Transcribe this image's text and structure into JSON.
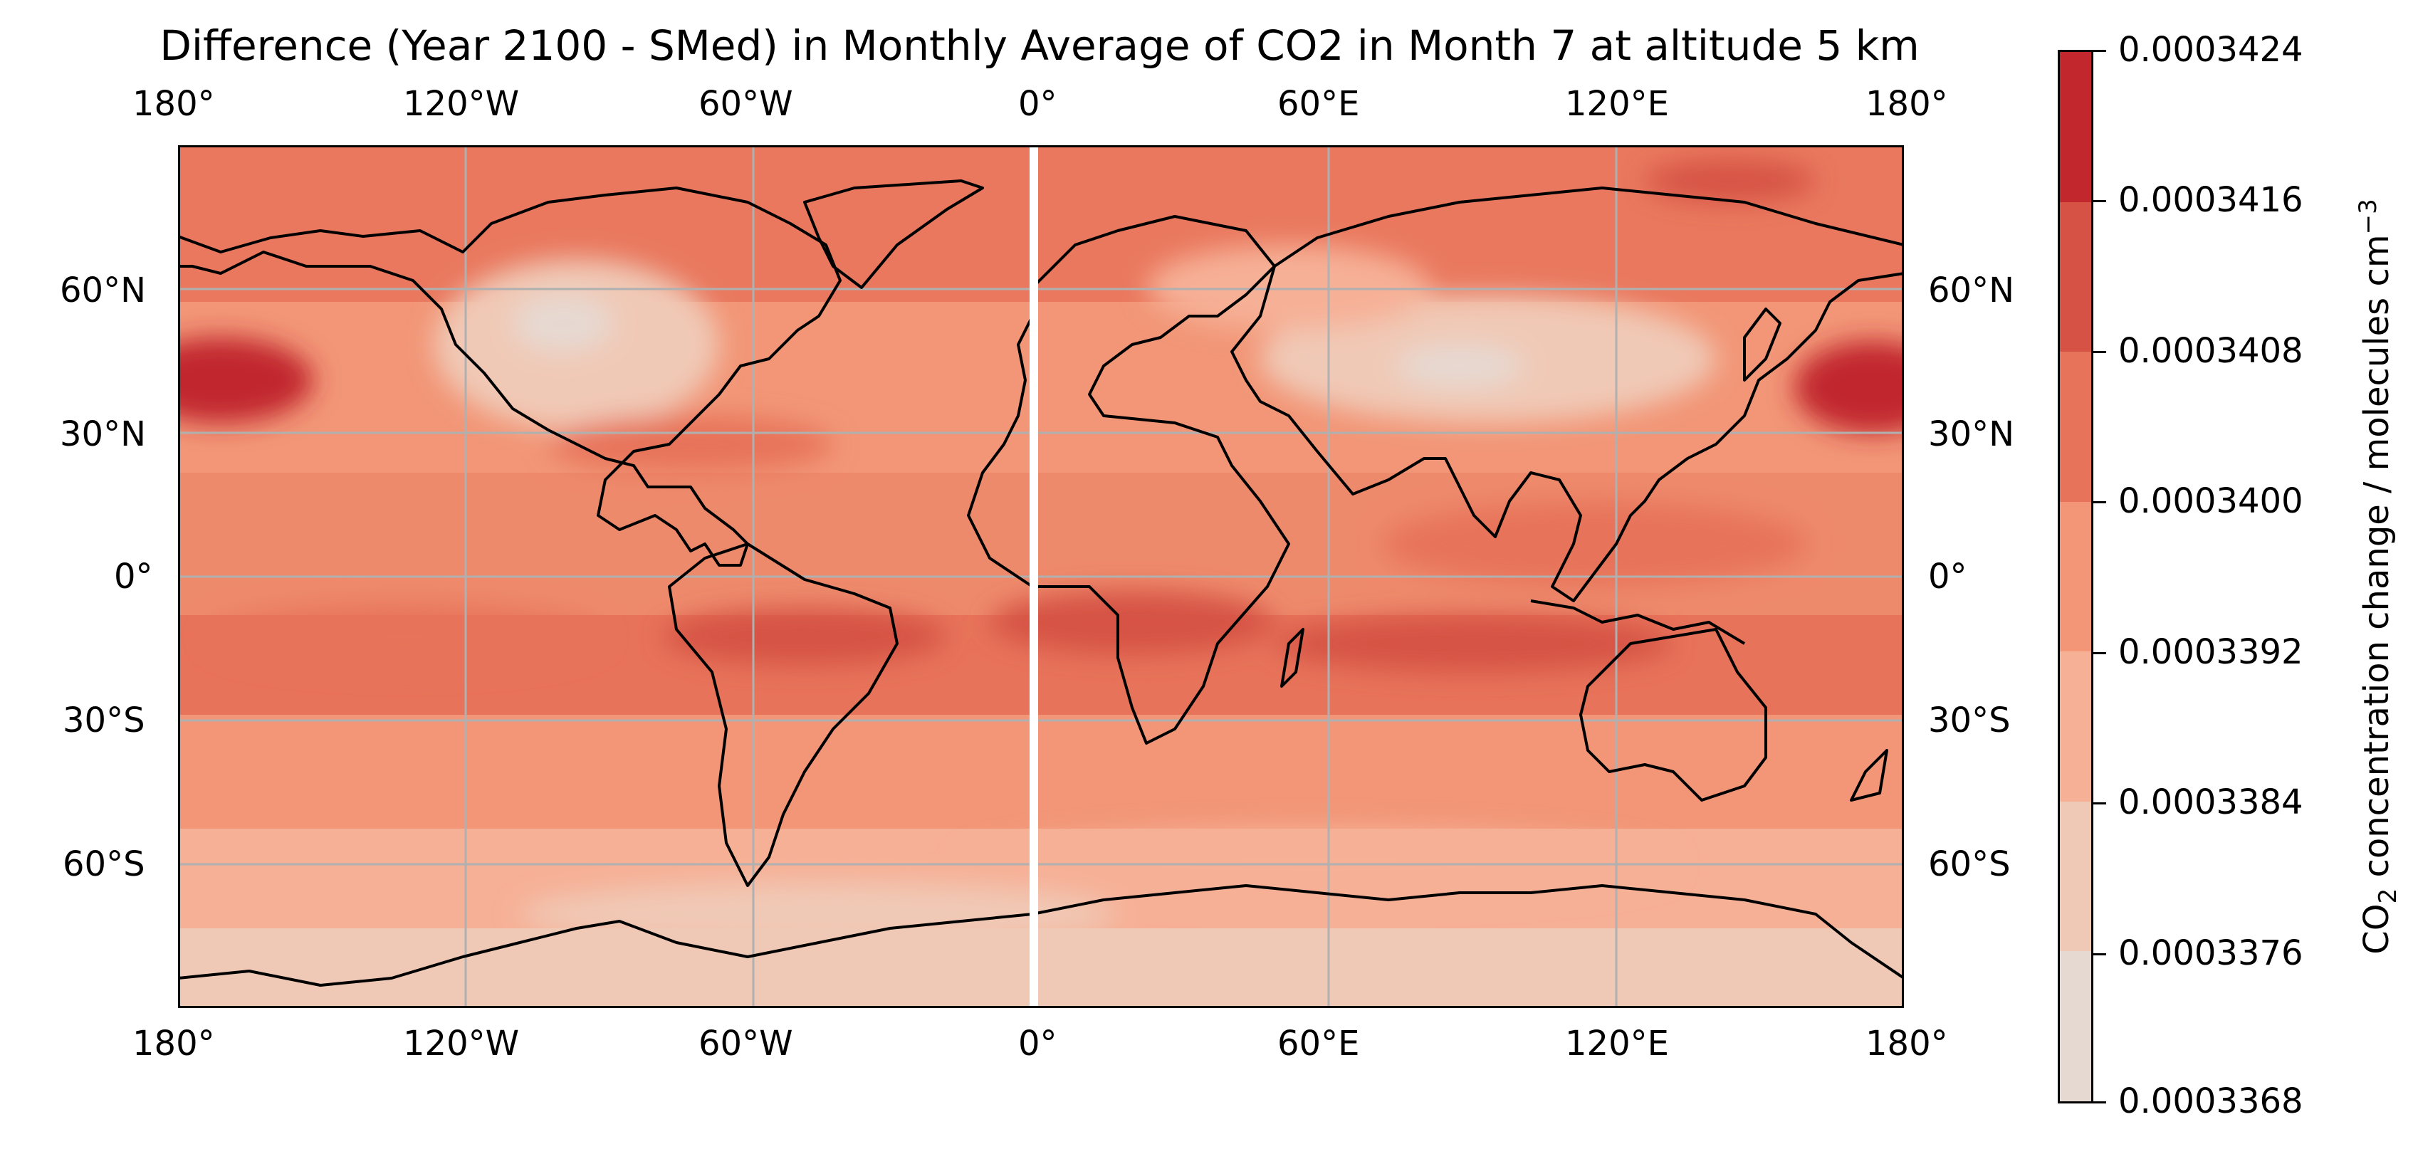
{
  "title": "Difference (Year 2100 - SMed) in Monthly Average of CO2 in Month 7 at altitude 5 km",
  "map": {
    "projection": "PlateCarree",
    "lon_ticks": [
      "180°",
      "120°W",
      "60°W",
      "0°",
      "60°E",
      "120°E",
      "180°"
    ],
    "lat_ticks": [
      "60°N",
      "30°N",
      "0°",
      "30°S",
      "60°S"
    ],
    "gridlines": true,
    "gridline_color": "#b0b0b0",
    "coastline_color": "#000000",
    "gap_at_meridian_0": true
  },
  "colorbar": {
    "label_main": "CO",
    "label_sub": "2",
    "label_rest": " concentration change / molecules cm",
    "label_sup": "−3",
    "ticks": [
      "0.0003424",
      "0.0003416",
      "0.0003408",
      "0.0003400",
      "0.0003392",
      "0.0003384",
      "0.0003376",
      "0.0003368"
    ],
    "levels_colors": [
      "#c1272d",
      "#d65244",
      "#e7735a",
      "#f29677",
      "#f6b096",
      "#f0c9b6",
      "#e6d9d2"
    ]
  }
}
